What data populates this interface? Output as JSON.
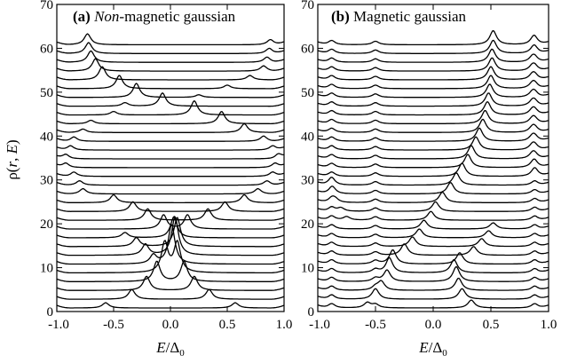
{
  "chart_data": [
    {
      "type": "line",
      "panel_id": "(a)",
      "title_plain": " Non-magnetic gaussian",
      "title_parts": [
        {
          "text": "(a)",
          "style": "bold"
        },
        {
          "text": " ",
          "style": "normal"
        },
        {
          "text": "Non",
          "style": "italic"
        },
        {
          "text": "-magnetic gaussian",
          "style": "normal"
        }
      ],
      "xlabel": "E/Δ0",
      "ylabel": "ρ(r, E)",
      "xlim": [
        -1.0,
        1.0
      ],
      "ylim": [
        0,
        70
      ],
      "x_ticks": [
        "-1.0",
        "-0.5",
        "0.0",
        "0.5",
        "1.0"
      ],
      "y_ticks": [
        "0",
        "10",
        "20",
        "30",
        "40",
        "50",
        "60",
        "70"
      ],
      "series_description": "Stacked LDOS curves, one per position r, offset vertically by 2 units",
      "series_count": 31,
      "offset_step": 2,
      "curve_baseline": 0.8,
      "inner_peaks_E": [
        -0.57,
        -0.34,
        -0.21,
        -0.12,
        -0.05,
        0.01,
        0.04,
        0.06,
        0.03,
        -0.06,
        -0.2,
        -0.33,
        -0.5,
        -0.77,
        -0.8,
        -0.85,
        -0.92,
        0.95,
        0.9,
        0.82,
        0.65,
        0.45,
        0.21,
        -0.07,
        -0.3,
        -0.45,
        -0.6,
        -0.66,
        -0.7,
        -0.72,
        -0.73
      ],
      "inner_peak_heights": [
        1.2,
        2.2,
        3.2,
        4.6,
        6.8,
        9.0,
        8.8,
        6.6,
        4.8,
        3.2,
        2.6,
        2.2,
        1.8,
        1.2,
        1.0,
        1.0,
        1.0,
        1.0,
        1.0,
        1.2,
        2.0,
        2.8,
        3.2,
        3.0,
        3.2,
        3.0,
        3.0,
        2.8,
        2.6,
        2.5,
        2.5
      ],
      "outer_peaks_E": [
        0.57,
        0.34,
        0.21,
        0.12,
        0.06,
        -0.15,
        -0.22,
        -0.3,
        -0.4,
        0.15,
        0.33,
        0.48,
        0.65,
        0.77,
        0.85,
        0.9,
        0.92,
        -0.92,
        -0.88,
        -0.85,
        -0.77,
        -0.7,
        -0.5,
        -0.4,
        0.25,
        0.5,
        0.7,
        0.82,
        0.85,
        0.87,
        0.88
      ],
      "outer_peak_heights": [
        1.2,
        2.2,
        3.2,
        4.6,
        6.8,
        2.0,
        2.5,
        2.0,
        1.2,
        3.2,
        2.6,
        2.2,
        1.8,
        1.2,
        1.0,
        1.0,
        1.0,
        1.0,
        1.0,
        1.0,
        0.8,
        0.8,
        0.8,
        0.8,
        0.6,
        0.8,
        1.0,
        1.2,
        1.2,
        1.2,
        1.2
      ]
    },
    {
      "type": "line",
      "panel_id": "(b)",
      "title_plain": " Magnetic gaussian",
      "title_parts": [
        {
          "text": "(b)",
          "style": "bold"
        },
        {
          "text": " Magnetic gaussian",
          "style": "normal"
        }
      ],
      "xlabel": "E/Δ0",
      "ylabel": "",
      "xlim": [
        -1.0,
        1.0
      ],
      "ylim": [
        0,
        70
      ],
      "x_ticks": [
        "-1.0",
        "-0.5",
        "0.0",
        "0.5",
        "1.0"
      ],
      "y_ticks": [
        "0",
        "10",
        "20",
        "30",
        "40",
        "50",
        "60",
        "70"
      ],
      "series_description": "Stacked LDOS curves, one per position r, offset vertically by 2 units",
      "series_count": 31,
      "offset_step": 2,
      "curve_baseline": 0.8,
      "inner_peaks_E": [
        -0.57,
        -0.5,
        -0.45,
        -0.4,
        -0.38,
        -0.35,
        -0.25,
        -0.18,
        -0.12,
        -0.08,
        -0.02,
        0.02,
        0.08,
        0.15,
        0.2,
        0.25,
        0.3,
        0.33,
        0.37,
        0.4,
        0.43,
        0.45,
        0.47,
        0.48,
        0.49,
        0.5,
        0.5,
        0.51,
        0.51,
        0.52,
        0.52
      ],
      "inner_peak_heights": [
        1.2,
        1.6,
        2.0,
        2.6,
        3.4,
        3.2,
        2.6,
        2.2,
        2.0,
        2.0,
        2.0,
        2.2,
        2.4,
        2.6,
        2.8,
        3.0,
        3.0,
        3.0,
        3.0,
        3.0,
        3.0,
        3.0,
        3.0,
        3.0,
        3.0,
        3.0,
        3.0,
        3.0,
        3.0,
        3.0,
        3.2
      ],
      "outer_peaks_E": [
        0.33,
        0.25,
        0.22,
        0.2,
        0.18,
        0.23,
        0.35,
        0.42,
        0.48,
        0.52,
        -0.75,
        -0.8,
        -0.85,
        -0.87,
        -0.88,
        0.88,
        0.87,
        0.86,
        0.86,
        0.86,
        0.86,
        0.86,
        0.86,
        0.86,
        0.86,
        0.86,
        0.86,
        0.86,
        0.86,
        0.87,
        0.87
      ],
      "outer_peak_heights": [
        1.8,
        2.4,
        2.8,
        3.4,
        3.0,
        2.6,
        2.0,
        1.8,
        1.6,
        1.4,
        0.8,
        0.8,
        0.8,
        0.8,
        0.8,
        1.0,
        1.0,
        1.0,
        1.0,
        1.0,
        1.0,
        1.0,
        1.0,
        1.0,
        1.0,
        1.0,
        1.0,
        1.0,
        1.0,
        1.0,
        1.2
      ],
      "static_peaks_E": [
        -0.88,
        -0.5,
        0.88
      ],
      "static_peak_heights": [
        1.0,
        0.8,
        1.0
      ]
    }
  ]
}
